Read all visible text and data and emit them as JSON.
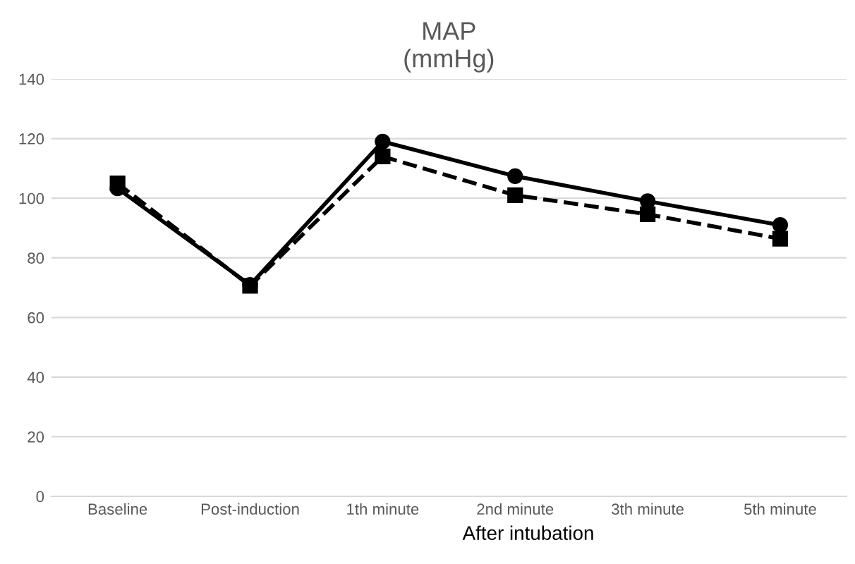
{
  "chart_data": {
    "type": "line",
    "title": "MAP\n(mmHg)",
    "xlabel": "After intubation",
    "categories": [
      "Baseline",
      "Post-induction",
      "1th minute",
      "2nd minute",
      "3th minute",
      "5th minute"
    ],
    "series": [
      {
        "color": "#000000",
        "marker": "circle",
        "line_style": "solid",
        "values": [
          103.3,
          70.9,
          119,
          107.4,
          99,
          91
        ]
      },
      {
        "color": "#000000",
        "marker": "square",
        "line_style": "dashed",
        "values": [
          105,
          70.6,
          114,
          101,
          94.6,
          86.4
        ]
      }
    ],
    "ylim": [
      0,
      140
    ],
    "yticks": [
      0,
      20,
      40,
      60,
      80,
      100,
      120,
      140
    ],
    "grid": "y"
  }
}
